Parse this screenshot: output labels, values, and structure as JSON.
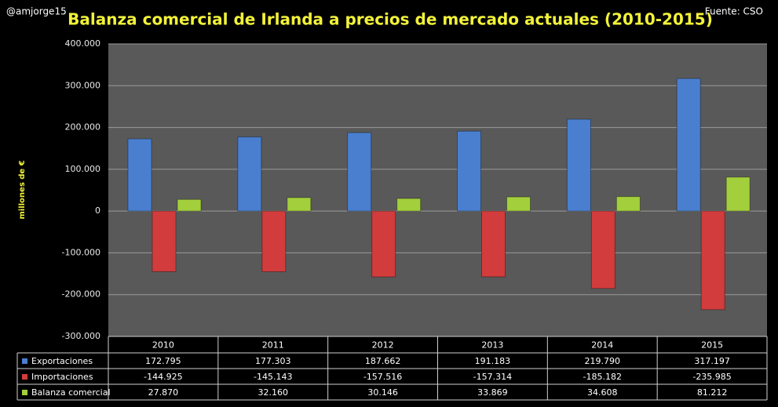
{
  "chart_data": {
    "type": "bar",
    "title": "Balanza comercial de Irlanda a precios de mercado actuales (2010-2015)",
    "author": "@amjorge15",
    "source": "Fuente: CSO",
    "ylabel": "millones de €",
    "categories": [
      "2010",
      "2011",
      "2012",
      "2013",
      "2014",
      "2015"
    ],
    "series": [
      {
        "name": "Exportaciones",
        "color": "#4a7fd0",
        "values": [
          172795,
          177303,
          187662,
          191183,
          219790,
          317197
        ],
        "value_labels": [
          "172.795",
          "177.303",
          "187.662",
          "191.183",
          "219.790",
          "317.197"
        ]
      },
      {
        "name": "Importaciones",
        "color": "#d23c3c",
        "values": [
          -144925,
          -145143,
          -157516,
          -157314,
          -185182,
          -235985
        ],
        "value_labels": [
          "-144.925",
          "-145.143",
          "-157.516",
          "-157.314",
          "-185.182",
          "-235.985"
        ]
      },
      {
        "name": "Balanza comercial",
        "color": "#a3cf3c",
        "values": [
          27870,
          32160,
          30146,
          33869,
          34608,
          81212
        ],
        "value_labels": [
          "27.870",
          "32.160",
          "30.146",
          "33.869",
          "34.608",
          "81.212"
        ]
      }
    ],
    "ylim": [
      -300000,
      400000
    ],
    "yticks": [
      {
        "value": -300000,
        "label": "-300.000"
      },
      {
        "value": -200000,
        "label": "-200.000"
      },
      {
        "value": -100000,
        "label": "-100.000"
      },
      0,
      {
        "value": 100000,
        "label": "100.000"
      },
      {
        "value": 200000,
        "label": "200.000"
      },
      {
        "value": 300000,
        "label": "300.000"
      },
      {
        "value": 400000,
        "label": "400.000"
      }
    ],
    "grid": true
  }
}
